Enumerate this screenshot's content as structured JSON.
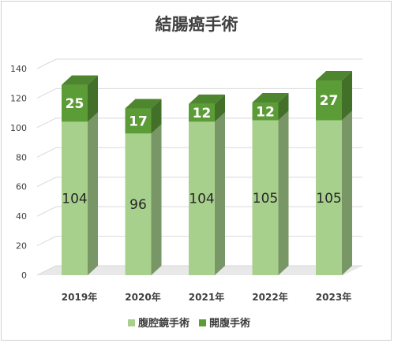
{
  "chart_data": {
    "type": "bar",
    "stacked": true,
    "three_d": true,
    "title": "結腸癌手術",
    "categories": [
      "2019年",
      "2020年",
      "2021年",
      "2022年",
      "2023年"
    ],
    "series": [
      {
        "name": "腹腔鏡手術",
        "values": [
          104,
          96,
          104,
          105,
          105
        ],
        "color": "#a8d08d"
      },
      {
        "name": "開腹手術",
        "values": [
          25,
          17,
          12,
          12,
          27
        ],
        "color": "#5c9c37"
      }
    ],
    "ylim": [
      0,
      140
    ],
    "yticks": [
      "0",
      "20",
      "40",
      "60",
      "80",
      "100",
      "120",
      "140"
    ],
    "grid": true,
    "legend_position": "bottom"
  }
}
